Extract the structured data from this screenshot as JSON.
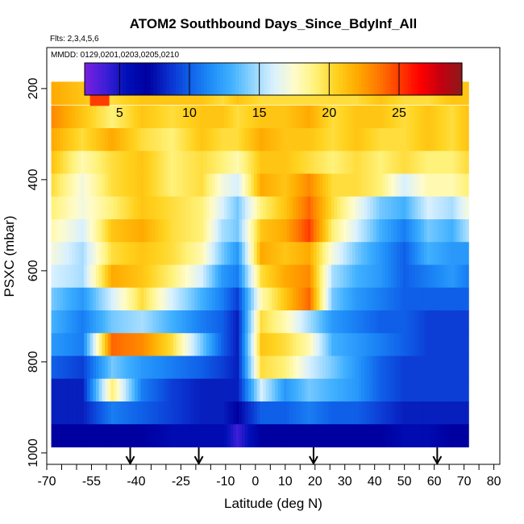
{
  "chart_data": {
    "type": "heatmap",
    "title": "ATOM2 Southbound Days_Since_BdyInf_All",
    "subtitle_flights": "Flts: 2,3,4,5,6",
    "subtitle_dates": "MMDD: 0129,0201,0203,0205,0210",
    "xlabel": "Latitude (deg N)",
    "ylabel": "PSXC (mbar)",
    "xlim": [
      -70,
      82
    ],
    "ylim": [
      1025,
      110
    ],
    "x_ticks": [
      -70,
      -55,
      -40,
      -25,
      -10,
      0,
      10,
      20,
      30,
      40,
      50,
      60,
      70,
      80
    ],
    "x_tick_labels": [
      "-70",
      "-55",
      "-40",
      "-25",
      "-10",
      "0",
      "10",
      "20",
      "30",
      "40",
      "50",
      "60",
      "70",
      "80"
    ],
    "x_minor_ticks": [
      -65,
      -60,
      -50,
      -45,
      -35,
      -30,
      -20,
      -15,
      -5,
      5,
      15,
      25,
      35,
      45,
      55,
      65,
      75
    ],
    "y_ticks": [
      200,
      400,
      600,
      800,
      1000
    ],
    "y_tick_labels": [
      "200",
      "400",
      "600",
      "800",
      "1000"
    ],
    "colorbar": {
      "range": [
        2.5,
        29.5
      ],
      "ticks": [
        5,
        10,
        15,
        20,
        25
      ],
      "tick_labels": [
        "5",
        "10",
        "15",
        "20",
        "25"
      ],
      "colors": [
        "#7b1fe0",
        "#3d1fd8",
        "#0010b8",
        "#0000a0",
        "#0a2ecc",
        "#0f5fe8",
        "#1e8cf8",
        "#40b0ff",
        "#8fd4ff",
        "#d8f0ff",
        "#fffccc",
        "#fff27a",
        "#ffd21e",
        "#ffaa00",
        "#ff7a00",
        "#ff3c00",
        "#ff0000",
        "#c40010",
        "#8b1a1a"
      ]
    },
    "pressure_levels": [
      210,
      262,
      312,
      362,
      412,
      462,
      512,
      562,
      612,
      662,
      712,
      762,
      812,
      862,
      912,
      962
    ],
    "lat_range": [
      -68.5,
      71.5
    ],
    "level_anchor_lats": [
      -68,
      -58,
      -48,
      -38,
      -28,
      -18,
      -11,
      -6,
      2,
      10,
      18,
      26,
      34,
      42,
      50,
      58,
      66,
      71
    ],
    "level_anchor_values": [
      [
        22,
        21,
        20,
        21,
        21,
        21,
        20,
        21,
        20,
        20,
        20,
        20,
        20,
        21,
        20,
        20,
        21,
        21
      ],
      [
        23,
        21,
        19,
        21,
        20,
        21,
        21,
        20,
        21,
        21,
        22,
        20,
        21,
        21,
        20,
        21,
        20,
        21
      ],
      [
        22,
        20,
        22,
        20,
        19,
        21,
        20,
        20,
        22,
        21,
        21,
        20,
        21,
        20,
        20,
        21,
        20,
        21
      ],
      [
        21,
        18,
        20,
        21,
        19,
        20,
        19,
        18,
        21,
        21,
        20,
        19,
        20,
        19,
        20,
        19,
        19,
        20
      ],
      [
        20,
        17,
        20,
        21,
        19,
        20,
        17,
        16,
        22,
        21,
        23,
        20,
        20,
        19,
        16,
        18,
        18,
        19
      ],
      [
        19,
        17,
        19,
        21,
        20,
        19,
        16,
        14,
        19,
        21,
        24,
        20,
        17,
        14,
        13,
        16,
        15,
        17
      ],
      [
        18,
        16,
        21,
        22,
        20,
        19,
        15,
        14,
        21,
        22,
        25,
        19,
        16,
        13,
        11,
        14,
        13,
        15
      ],
      [
        17,
        15,
        20,
        21,
        20,
        18,
        14,
        12,
        22,
        21,
        22,
        17,
        14,
        12,
        10,
        13,
        12,
        12
      ],
      [
        16,
        15,
        22,
        21,
        19,
        16,
        12,
        11,
        20,
        22,
        23,
        15,
        13,
        12,
        10,
        11,
        12,
        11
      ],
      [
        14,
        12,
        16,
        20,
        16,
        13,
        11,
        9,
        18,
        21,
        24,
        14,
        12,
        11,
        10,
        10,
        10,
        10
      ],
      [
        13,
        11,
        14,
        15,
        13,
        11,
        10,
        8,
        20,
        18,
        15,
        12,
        11,
        10,
        10,
        9,
        9,
        9
      ],
      [
        12,
        11,
        24,
        23,
        20,
        14,
        10,
        8,
        21,
        20,
        18,
        13,
        12,
        11,
        10,
        9,
        9,
        9
      ],
      [
        10,
        9,
        14,
        12,
        11,
        10,
        9,
        8,
        20,
        19,
        16,
        14,
        12,
        10,
        9,
        9,
        9,
        9
      ],
      [
        8,
        8,
        19,
        11,
        9,
        8,
        8,
        8,
        16,
        12,
        14,
        13,
        12,
        10,
        9,
        9,
        9,
        9
      ],
      [
        8,
        8,
        11,
        10,
        9,
        8,
        8,
        7,
        10,
        10,
        11,
        10,
        10,
        9,
        8,
        8,
        8,
        8
      ],
      [
        7,
        7,
        7,
        7,
        6,
        6,
        6,
        4,
        7,
        7,
        7,
        7,
        7,
        7,
        6,
        6,
        7,
        7
      ]
    ],
    "isolated_patch": {
      "lat": [
        -55.5,
        -49
      ],
      "pressure": [
        175,
        238
      ],
      "value": 25
    },
    "arrow_markers_lat": [
      -42,
      -19,
      19.5,
      61
    ]
  }
}
